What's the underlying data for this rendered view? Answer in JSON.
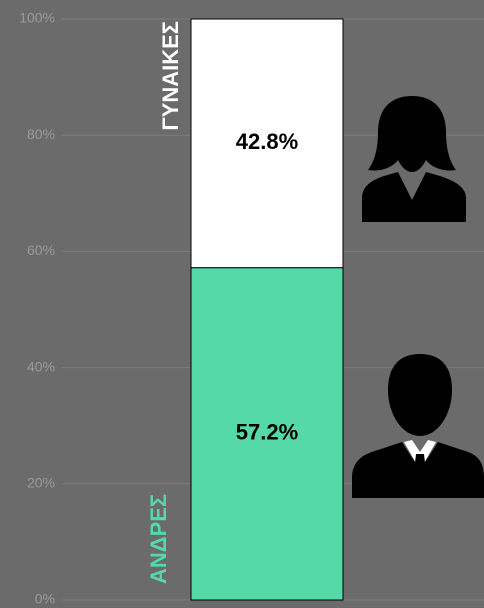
{
  "chart_data": {
    "type": "stacked_bar",
    "categories": [
      null
    ],
    "series": [
      {
        "name": "ΑΝΔΡΕΣ",
        "color": "#55d9a9",
        "values": [
          57.2
        ],
        "value_labels": [
          "57.2%"
        ]
      },
      {
        "name": "ΓΥΝΑΙΚΕΣ",
        "color": "#ffffff",
        "values": [
          42.8
        ],
        "value_labels": [
          "42.8%"
        ]
      }
    ],
    "ylim": [
      0,
      100
    ],
    "yticks": [
      {
        "value": 0,
        "label": "0%"
      },
      {
        "value": 20,
        "label": "20%"
      },
      {
        "value": 40,
        "label": "40%"
      },
      {
        "value": 60,
        "label": "60%"
      },
      {
        "value": 80,
        "label": "80%"
      },
      {
        "value": 100,
        "label": "100%"
      }
    ],
    "grid": true
  }
}
